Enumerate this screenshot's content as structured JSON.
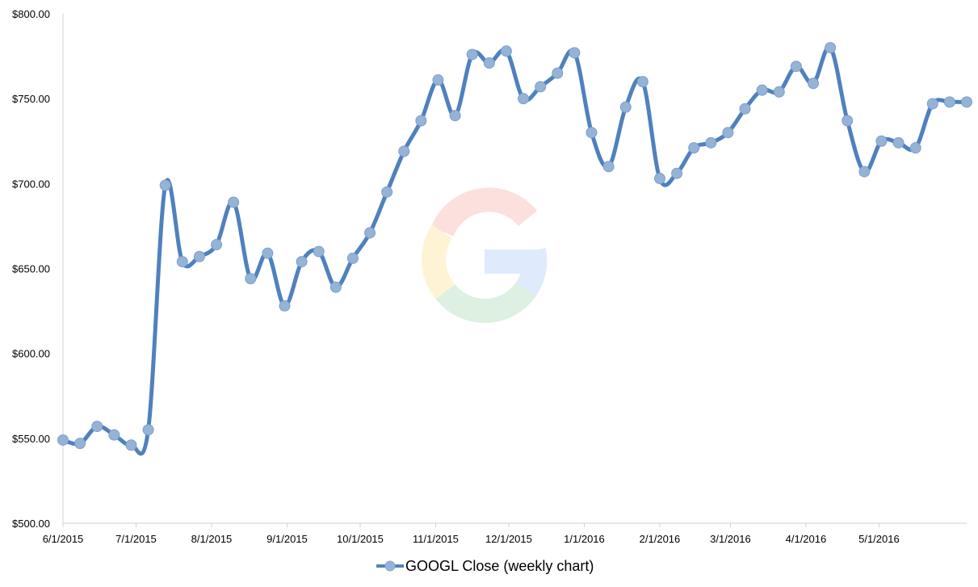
{
  "chart_data": {
    "type": "line",
    "title": "",
    "xlabel": "",
    "ylabel": "",
    "ylim": [
      500,
      800
    ],
    "yticks": [
      500,
      550,
      600,
      650,
      700,
      750,
      800
    ],
    "ytick_labels": [
      "$500.00",
      "$550.00",
      "$600.00",
      "$650.00",
      "$700.00",
      "$750.00",
      "$800.00"
    ],
    "xticks": [
      "2015-06-01",
      "2015-07-01",
      "2015-08-01",
      "2015-09-01",
      "2015-10-01",
      "2015-11-01",
      "2015-12-01",
      "2016-01-01",
      "2016-02-01",
      "2016-03-01",
      "2016-04-01",
      "2016-05-01"
    ],
    "xtick_labels": [
      "6/1/2015",
      "7/1/2015",
      "8/1/2015",
      "9/1/2015",
      "10/1/2015",
      "11/1/2015",
      "12/1/2015",
      "1/1/2016",
      "2/1/2016",
      "3/1/2016",
      "4/1/2016",
      "5/1/2016"
    ],
    "xlim": [
      "2015-06-01",
      "2016-06-06"
    ],
    "grid": false,
    "legend": "bottom",
    "line_color": "#4F81BD",
    "marker_color": "#95B3D7",
    "series": [
      {
        "name": "GOOGL Close (weekly chart)",
        "x": [
          "2015-06-01",
          "2015-06-08",
          "2015-06-15",
          "2015-06-22",
          "2015-06-29",
          "2015-07-06",
          "2015-07-13",
          "2015-07-20",
          "2015-07-27",
          "2015-08-03",
          "2015-08-10",
          "2015-08-17",
          "2015-08-24",
          "2015-08-31",
          "2015-09-07",
          "2015-09-14",
          "2015-09-21",
          "2015-09-28",
          "2015-10-05",
          "2015-10-12",
          "2015-10-19",
          "2015-10-26",
          "2015-11-02",
          "2015-11-09",
          "2015-11-16",
          "2015-11-23",
          "2015-11-30",
          "2015-12-07",
          "2015-12-14",
          "2015-12-21",
          "2015-12-28",
          "2016-01-04",
          "2016-01-11",
          "2016-01-18",
          "2016-01-25",
          "2016-02-01",
          "2016-02-08",
          "2016-02-15",
          "2016-02-22",
          "2016-02-29",
          "2016-03-07",
          "2016-03-14",
          "2016-03-21",
          "2016-03-28",
          "2016-04-04",
          "2016-04-11",
          "2016-04-18",
          "2016-04-25",
          "2016-05-02",
          "2016-05-09",
          "2016-05-16",
          "2016-05-23",
          "2016-05-30",
          "2016-06-06"
        ],
        "values": [
          549,
          547,
          557,
          552,
          546,
          555,
          699,
          654,
          657,
          664,
          689,
          644,
          659,
          628,
          654,
          660,
          639,
          656,
          671,
          695,
          719,
          737,
          761,
          740,
          776,
          771,
          778,
          750,
          757,
          765,
          777,
          730,
          710,
          745,
          760,
          703,
          706,
          721,
          724,
          730,
          744,
          755,
          754,
          769,
          759,
          780,
          737,
          707,
          725,
          724,
          721,
          747,
          748,
          748
        ]
      }
    ]
  }
}
